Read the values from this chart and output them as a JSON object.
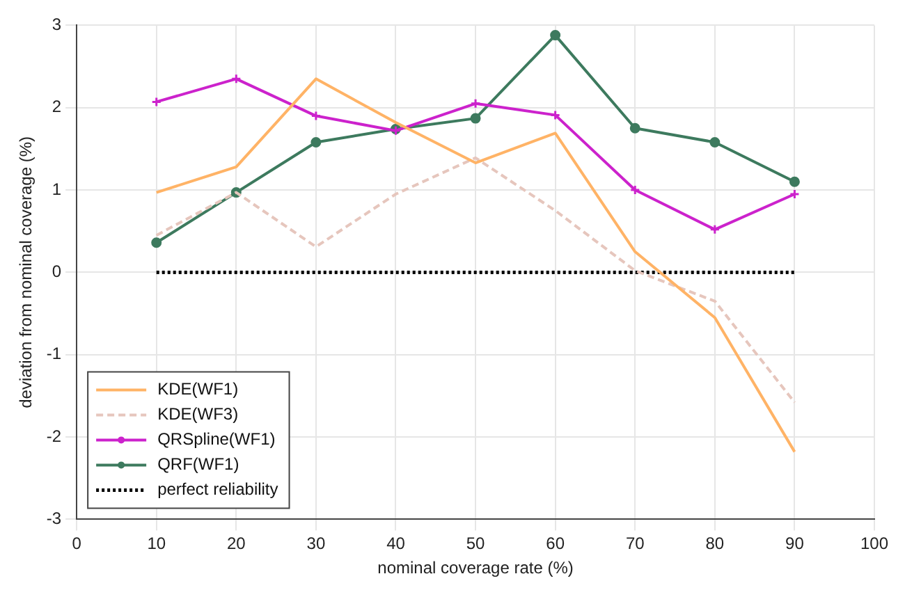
{
  "chart_data": {
    "type": "line",
    "xlabel": "nominal coverage rate (%)",
    "ylabel": "deviation from nominal coverage (%)",
    "x": [
      10,
      20,
      30,
      40,
      50,
      60,
      70,
      80,
      90
    ],
    "series": [
      {
        "name": "KDE(WF1)",
        "color": "#ffb366",
        "values": [
          0.97,
          1.28,
          2.35,
          1.82,
          1.33,
          1.69,
          0.25,
          -0.55,
          -2.18
        ]
      },
      {
        "name": "KDE(WF3)",
        "color": "#e6c6bd",
        "line_style": "dashed",
        "values": [
          0.45,
          0.97,
          0.31,
          0.95,
          1.39,
          0.75,
          0.02,
          -0.35,
          -1.58
        ]
      },
      {
        "name": "QRSpline(WF1)",
        "color": "#cc22cc",
        "marker": "cross",
        "values": [
          2.07,
          2.35,
          1.9,
          1.72,
          2.05,
          1.91,
          1.0,
          0.52,
          0.95
        ]
      },
      {
        "name": "QRF(WF1)",
        "color": "#3d7a5e",
        "marker": "circle",
        "values": [
          0.36,
          0.97,
          1.58,
          1.74,
          1.87,
          2.88,
          1.75,
          1.58,
          1.1
        ]
      },
      {
        "name": "perfect reliability",
        "color": "#000000",
        "line_style": "dotted",
        "values": [
          0,
          0,
          0,
          0,
          0,
          0,
          0,
          0,
          0
        ]
      }
    ],
    "xlim": [
      0,
      100
    ],
    "xticks": [
      0,
      10,
      20,
      30,
      40,
      50,
      60,
      70,
      80,
      90,
      100
    ],
    "ylim": [
      -3,
      3
    ],
    "yticks": [
      -3,
      -2,
      -1,
      0,
      1,
      2,
      3
    ],
    "grid": true,
    "legend": "bottom left"
  }
}
